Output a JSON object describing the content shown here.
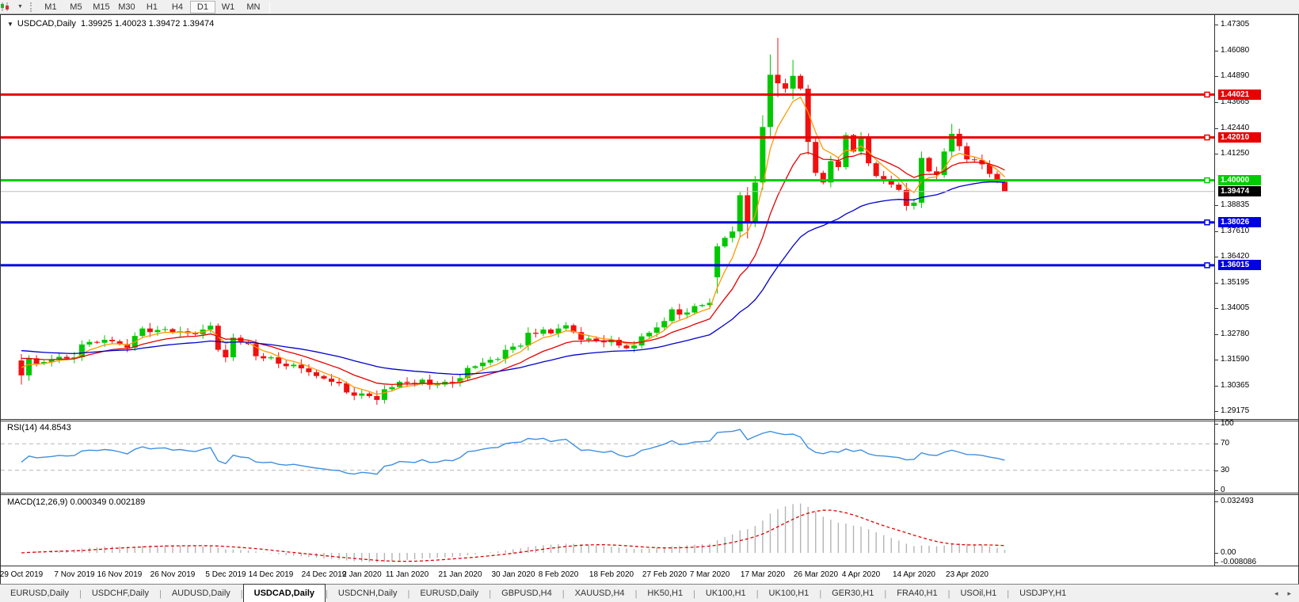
{
  "toolbar": {
    "timeframes": [
      "M1",
      "M5",
      "M15",
      "M30",
      "H1",
      "H4",
      "D1",
      "W1",
      "MN"
    ],
    "active_timeframe": "D1"
  },
  "title": {
    "symbol": "USDCAD,Daily",
    "ohlc": "1.39925 1.40023 1.39472 1.39474"
  },
  "colors": {
    "bull": "#00c800",
    "bear": "#f01010",
    "ma_fast": "#ff9900",
    "ma_mid": "#e60000",
    "ma_slow": "#0000cc",
    "rsi_line": "#3f8fe0",
    "rsi_level": "#b5b5b5",
    "macd_hist": "#b4b4b4",
    "macd_signal": "#e00000",
    "resistance": "#e80000",
    "pivot": "#00cc00",
    "support": "#0000e0",
    "current_line": "#bdbdbd",
    "current_badge": "#000000"
  },
  "chart_data": {
    "type": "candlestick",
    "symbol": "USDCAD",
    "timeframe": "Daily",
    "last_bar": {
      "open": 1.39925,
      "high": 1.40023,
      "low": 1.39472,
      "close": 1.39474
    },
    "first_open": 1.3155,
    "closes": [
      1.3085,
      1.3165,
      1.314,
      1.3148,
      1.3158,
      1.3172,
      1.3165,
      1.317,
      1.323,
      1.3242,
      1.3238,
      1.3252,
      1.3245,
      1.3232,
      1.3215,
      1.327,
      1.3305,
      1.3288,
      1.3298,
      1.3302,
      1.3285,
      1.3292,
      1.3283,
      1.3278,
      1.33,
      1.3318,
      1.3205,
      1.317,
      1.3262,
      1.324,
      1.3232,
      1.3175,
      1.3165,
      1.317,
      1.314,
      1.3128,
      1.3135,
      1.3118,
      1.31,
      1.3082,
      1.307,
      1.3055,
      1.3048,
      1.3005,
      1.299,
      1.3,
      1.2988,
      1.297,
      1.302,
      1.303,
      1.3055,
      1.305,
      1.3045,
      1.3065,
      1.304,
      1.3042,
      1.3055,
      1.305,
      1.3072,
      1.312,
      1.3128,
      1.3145,
      1.3158,
      1.3162,
      1.3205,
      1.322,
      1.3225,
      1.3285,
      1.328,
      1.33,
      1.3282,
      1.3305,
      1.332,
      1.3288,
      1.3252,
      1.3258,
      1.3248,
      1.324,
      1.3252,
      1.3225,
      1.3212,
      1.3225,
      1.3268,
      1.3285,
      1.331,
      1.334,
      1.3395,
      1.337,
      1.338,
      1.341,
      1.3415,
      1.3425,
      1.369,
      1.373,
      1.376,
      1.393,
      1.3805,
      1.399,
      1.425,
      1.4495,
      1.4455,
      1.443,
      1.449,
      1.443,
      1.418,
      1.4035,
      1.399,
      1.409,
      1.4062,
      1.4212,
      1.4135,
      1.4205,
      1.408,
      1.402,
      1.4005,
      1.398,
      1.3955,
      1.388,
      1.3895,
      1.4105,
      1.4042,
      1.4025,
      1.4135,
      1.4218,
      1.416,
      1.4098,
      1.4095,
      1.4075,
      1.403,
      1.3998,
      1.39474
    ],
    "ohlc_overrides": {
      "0": [
        1.3155,
        1.3185,
        1.3042,
        1.3085
      ],
      "1": [
        1.3085,
        1.318,
        1.306,
        1.3165
      ],
      "92": [
        1.3545,
        1.3705,
        1.3468,
        1.369
      ],
      "95": [
        1.376,
        1.3945,
        1.373,
        1.393
      ],
      "96": [
        1.393,
        1.3968,
        1.3727,
        1.3805
      ],
      "97": [
        1.3805,
        1.402,
        1.378,
        1.399
      ],
      "98": [
        1.399,
        1.4305,
        1.3955,
        1.425
      ],
      "99": [
        1.425,
        1.459,
        1.4205,
        1.4495
      ],
      "100": [
        1.4495,
        1.4668,
        1.439,
        1.4455
      ],
      "102": [
        1.443,
        1.4565,
        1.438,
        1.449
      ],
      "104": [
        1.443,
        1.4448,
        1.412,
        1.418
      ],
      "117": [
        1.3955,
        1.3988,
        1.3858,
        1.388
      ],
      "119": [
        1.3895,
        1.4135,
        1.387,
        1.4105
      ],
      "123": [
        1.4135,
        1.4265,
        1.411,
        1.4218
      ],
      "130": [
        1.39925,
        1.40023,
        1.39472,
        1.39474
      ]
    },
    "price_axis": {
      "min": 1.29175,
      "max": 1.47305,
      "ticks": [
        "1.47305",
        "1.46080",
        "1.44890",
        "1.43665",
        "1.42440",
        "1.41250",
        "1.38835",
        "1.37610",
        "1.36420",
        "1.35195",
        "1.34005",
        "1.32780",
        "1.31590",
        "1.30365",
        "1.29175"
      ]
    },
    "hlines": [
      {
        "price": 1.44021,
        "label": "1.44021",
        "role": "resistance"
      },
      {
        "price": 1.4201,
        "label": "1.42010",
        "role": "resistance"
      },
      {
        "price": 1.4,
        "label": "1.40000",
        "role": "pivot"
      },
      {
        "price": 1.38026,
        "label": "1.38026",
        "role": "support"
      },
      {
        "price": 1.36015,
        "label": "1.36015",
        "role": "support"
      }
    ],
    "current_price": {
      "value": 1.39474,
      "label": "1.39474"
    },
    "moving_averages": [
      {
        "name": "fast",
        "period": 5,
        "seed": 1.314
      },
      {
        "name": "medium",
        "period": 13,
        "seed": 1.3178
      },
      {
        "name": "slow",
        "period": 34,
        "seed": 1.3208
      }
    ],
    "date_labels": [
      {
        "text": "29 Oct 2019",
        "bar": 0
      },
      {
        "text": "7 Nov 2019",
        "bar": 7
      },
      {
        "text": "16 Nov 2019",
        "bar": 13
      },
      {
        "text": "26 Nov 2019",
        "bar": 20
      },
      {
        "text": "5 Dec 2019",
        "bar": 27
      },
      {
        "text": "14 Dec 2019",
        "bar": 33
      },
      {
        "text": "24 Dec 2019",
        "bar": 40
      },
      {
        "text": "2 Jan 2020",
        "bar": 45
      },
      {
        "text": "11 Jan 2020",
        "bar": 51
      },
      {
        "text": "21 Jan 2020",
        "bar": 58
      },
      {
        "text": "30 Jan 2020",
        "bar": 65
      },
      {
        "text": "8 Feb 2020",
        "bar": 71
      },
      {
        "text": "18 Feb 2020",
        "bar": 78
      },
      {
        "text": "27 Feb 2020",
        "bar": 85
      },
      {
        "text": "7 Mar 2020",
        "bar": 91
      },
      {
        "text": "17 Mar 2020",
        "bar": 98
      },
      {
        "text": "26 Mar 2020",
        "bar": 105
      },
      {
        "text": "4 Apr 2020",
        "bar": 111
      },
      {
        "text": "14 Apr 2020",
        "bar": 118
      },
      {
        "text": "23 Apr 2020",
        "bar": 125
      }
    ],
    "rsi": {
      "label": "RSI(14) 44.8543",
      "period": 14,
      "value": 44.8543,
      "axis_ticks": [
        100,
        70,
        30,
        0
      ],
      "dashed_levels": [
        70,
        30
      ]
    },
    "macd": {
      "label": "MACD(12,26,9) 0.000349 0.002189",
      "fast": 12,
      "slow": 26,
      "signal": 9,
      "main_value": 0.000349,
      "signal_value": 0.002189,
      "axis_max": 0.032493,
      "axis_min": -0.008086,
      "axis_tick_labels": [
        "0.032493",
        "0.00",
        "-0.008086"
      ],
      "axis_tick_values": [
        0.032493,
        0,
        -0.008086
      ]
    }
  },
  "tabs": {
    "items": [
      "EURUSD,Daily",
      "USDCHF,Daily",
      "AUDUSD,Daily",
      "USDCAD,Daily",
      "USDCNH,Daily",
      "EURUSD,Daily",
      "GBPUSD,H4",
      "XAUUSD,H4",
      "HK50,H1",
      "UK100,H1",
      "UK100,H1",
      "GER30,H1",
      "FRA40,H1",
      "USOil,H1",
      "USDJPY,H1"
    ],
    "active_index": 3,
    "scroll_left": "◂",
    "scroll_right": "▸"
  }
}
